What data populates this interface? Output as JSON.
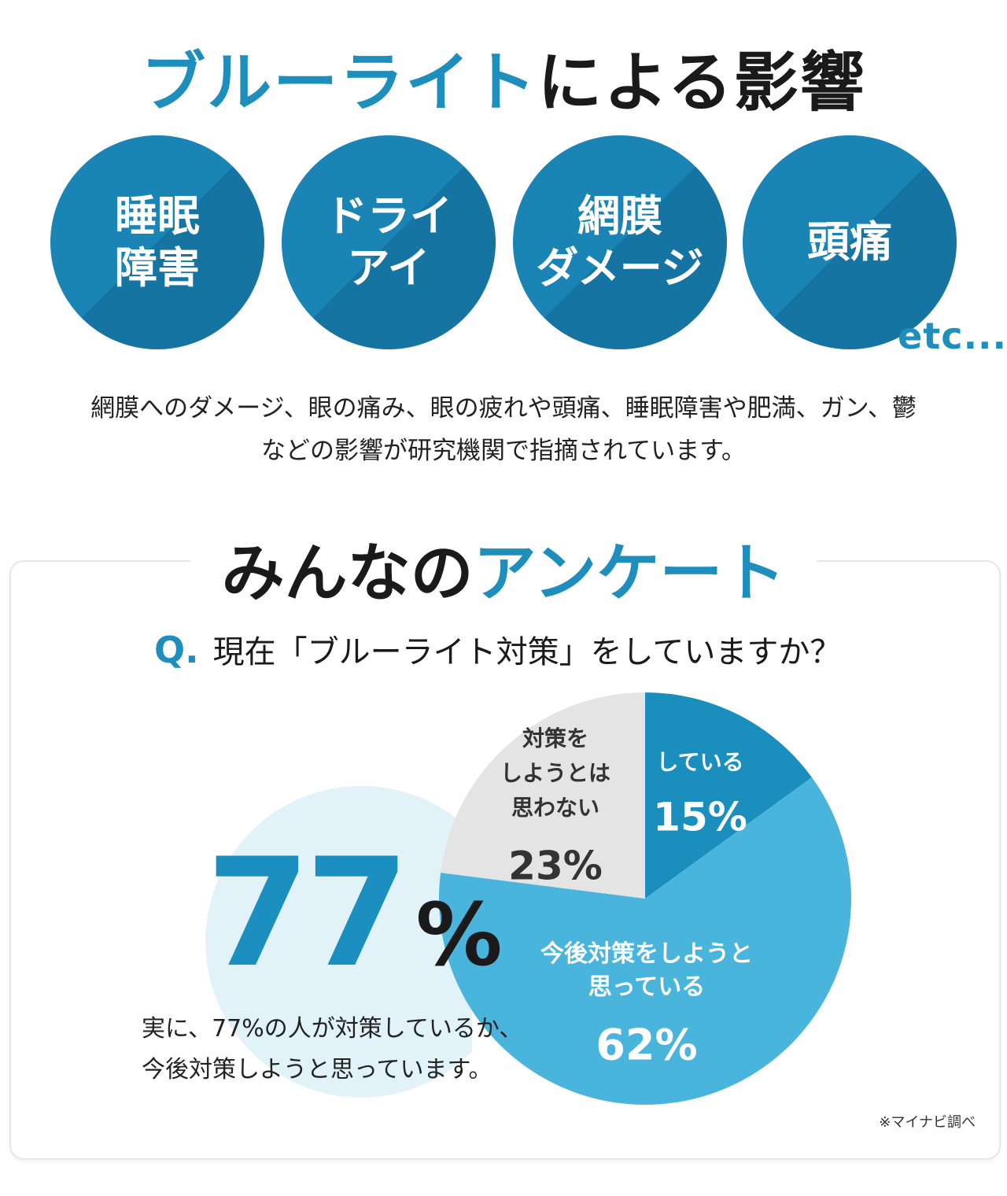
{
  "section1": {
    "title_accent": "ブルーライト",
    "title_rest": "による影響",
    "effects": [
      {
        "label": "睡眠\n障害"
      },
      {
        "label": "ドライ\nアイ"
      },
      {
        "label": "網膜\nダメージ"
      },
      {
        "label": "頭痛"
      }
    ],
    "etc": "etc...",
    "description": [
      "網膜へのダメージ、眼の痛み、眼の疲れや頭痛、睡眠障害や肥満、ガン、鬱",
      "などの影響が研究機関で指摘されています。"
    ]
  },
  "section2": {
    "title_dark": "みんなの",
    "title_accent": "アンケート",
    "question_mark": "Q.",
    "question": "現在「ブルーライト対策」をしていますか？",
    "callout_number": "77",
    "callout_sign": "%",
    "summary": "実に、77%の人が対策しているか、\n今後対策しようと思っています。",
    "source": "※マイナビ調べ"
  },
  "chart_data": {
    "type": "pie",
    "unit": "%",
    "slices": [
      {
        "label_lines": [
          "している"
        ],
        "value": 15,
        "color": "#1a8fbd"
      },
      {
        "label_lines": [
          "今後対策をしようと",
          "思っている"
        ],
        "value": 62,
        "color": "#4ab5dc"
      },
      {
        "label_lines": [
          "対策を",
          "しようとは",
          "思わない"
        ],
        "value": 23,
        "color": "#e4e4e4"
      }
    ],
    "start": "top",
    "direction": "clockwise"
  },
  "colors": {
    "accent": "#1e8fbd",
    "circle": "#1a85b5",
    "callout_bg": "#e2f2f9"
  }
}
